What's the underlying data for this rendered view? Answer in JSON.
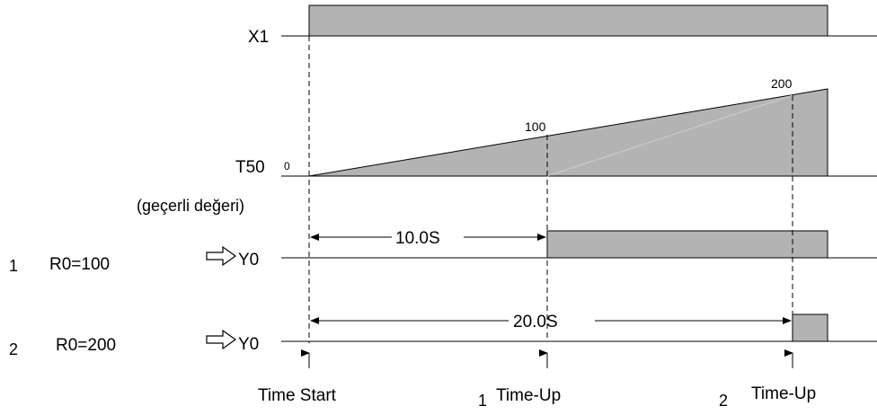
{
  "signals": {
    "x1": "X1",
    "t50": "T50",
    "t50_sub": "(geçerli değeri)",
    "y0_a": "Y0",
    "y0_b": "Y0"
  },
  "ramp": {
    "v0": "0",
    "v100": "100",
    "v200": "200"
  },
  "cases": [
    {
      "num": "1",
      "label": "R0=100",
      "duration": "10.0S"
    },
    {
      "num": "2",
      "label": "R0=200",
      "duration": "20.0S"
    }
  ],
  "markers": {
    "start": "Time Start",
    "up1_num": "1",
    "up1": "Time-Up",
    "up2_num": "2",
    "up2": "Time-Up"
  },
  "colors": {
    "fill": "#b3b3b3",
    "line": "#000000"
  }
}
